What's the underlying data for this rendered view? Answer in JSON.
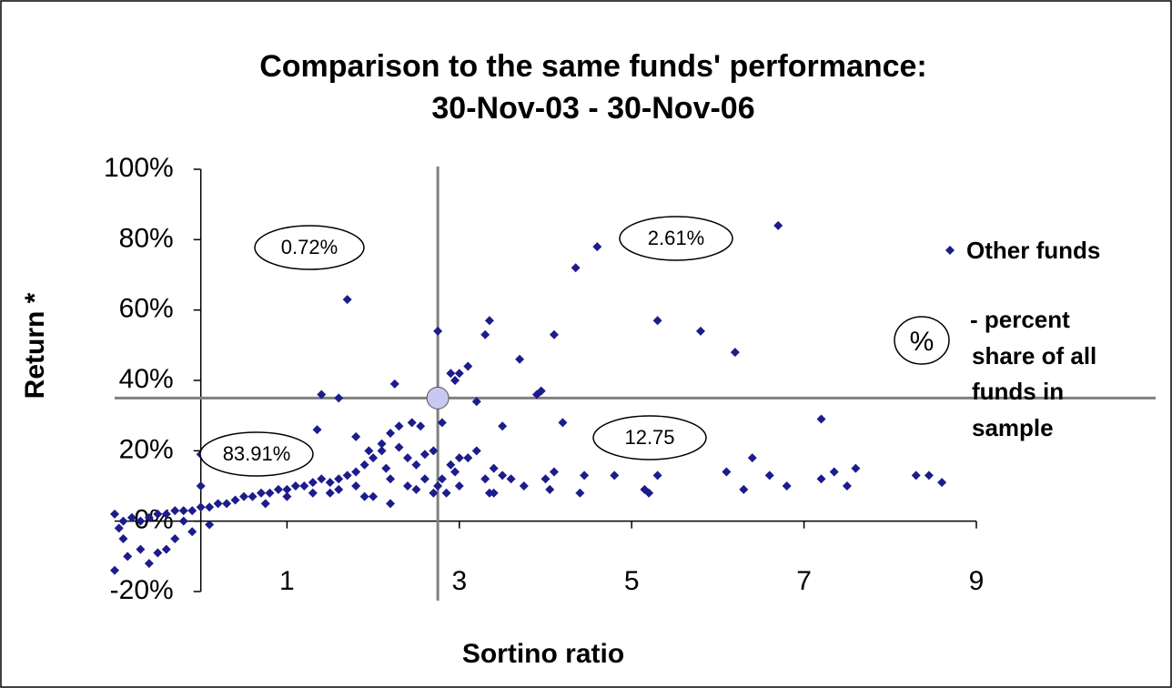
{
  "chart_data": {
    "type": "scatter",
    "title": [
      "Comparison to the same funds' performance:",
      "30-Nov-03 - 30-Nov-06"
    ],
    "xlabel": "Sortino ratio",
    "ylabel": "Return *",
    "xlim": [
      -1,
      9
    ],
    "ylim": [
      -20,
      100
    ],
    "xticks": [
      1,
      3,
      5,
      7,
      9
    ],
    "yticks": [
      {
        "value": -20,
        "label": "-20%"
      },
      {
        "value": 0,
        "label": "0%"
      },
      {
        "value": 20,
        "label": "20%"
      },
      {
        "value": 40,
        "label": "40%"
      },
      {
        "value": 60,
        "label": "60%"
      },
      {
        "value": 80,
        "label": "80%"
      },
      {
        "value": 100,
        "label": "100%"
      }
    ],
    "series": [
      {
        "name": "Other funds",
        "color": "#1c1c8c",
        "x": [
          1.7,
          2.75,
          3.35,
          3.3,
          3.7,
          4.1,
          4.35,
          4.6,
          6.7,
          5.3,
          5.8,
          6.2,
          3.95,
          3.9,
          3.1,
          3.0,
          2.9,
          2.95,
          2.25,
          1.4,
          1.6,
          3.2,
          2.8,
          3.5,
          4.2,
          7.2,
          6.4,
          6.3,
          6.6,
          6.1,
          6.8,
          7.2,
          7.35,
          7.5,
          7.6,
          8.3,
          8.45,
          8.6,
          5.3,
          5.2,
          5.15,
          4.8,
          4.45,
          4.1,
          4.0,
          4.05,
          4.4,
          3.75,
          3.6,
          3.5,
          3.4,
          3.3,
          3.35,
          3.4,
          3.2,
          3.1,
          3.0,
          2.9,
          2.8,
          3.0,
          2.75,
          2.85,
          2.95,
          2.6,
          2.5,
          2.4,
          2.3,
          2.2,
          2.1,
          2.0,
          1.9,
          1.8,
          1.7,
          1.6,
          1.5,
          1.4,
          1.3,
          1.2,
          1.1,
          1.0,
          0.9,
          0.8,
          0.7,
          0.6,
          0.5,
          0.4,
          0.3,
          0.2,
          0.1,
          0.0,
          -0.1,
          -0.2,
          -0.3,
          -0.4,
          -0.5,
          -0.6,
          -0.7,
          -0.8,
          -0.9,
          -1.0,
          -0.95,
          -0.9,
          -0.85,
          -1.0,
          -0.7,
          -0.6,
          -0.5,
          -0.4,
          -0.3,
          0.0,
          0.0,
          1.5,
          1.8,
          2.0,
          2.2,
          2.4,
          2.6,
          2.7,
          1.9,
          1.6,
          1.3,
          1.0,
          2.3,
          2.45,
          2.55,
          2.1,
          1.8,
          1.35,
          2.5,
          2.15,
          1.95,
          2.7,
          2.2,
          0.75,
          -0.2,
          -0.1,
          0.1
        ],
        "values": [
          63,
          54,
          57,
          53,
          46,
          53,
          72,
          78,
          84,
          57,
          54,
          48,
          37,
          36,
          44,
          42,
          42,
          40,
          39,
          36,
          35,
          34,
          28,
          27,
          28,
          29,
          18,
          9,
          13,
          14,
          10,
          12,
          14,
          10,
          15,
          13,
          13,
          11,
          13,
          8,
          9,
          13,
          13,
          14,
          12,
          9,
          8,
          10,
          12,
          13,
          15,
          12,
          8,
          8,
          20,
          18,
          18,
          16,
          12,
          10,
          10,
          8,
          14,
          19,
          16,
          18,
          21,
          25,
          22,
          18,
          16,
          14,
          13,
          12,
          11,
          12,
          11,
          10,
          10,
          9,
          9,
          8,
          8,
          7,
          7,
          6,
          5,
          5,
          4,
          4,
          3,
          3,
          3,
          2,
          2,
          1,
          0,
          1,
          0,
          2,
          -2,
          -5,
          -10,
          -14,
          -8,
          -12,
          -9,
          -8,
          -5,
          10,
          19,
          8,
          10,
          7,
          12,
          10,
          12,
          8,
          7,
          9,
          8,
          7,
          27,
          28,
          27,
          20,
          24,
          26,
          9,
          15,
          20,
          20,
          5,
          5,
          0,
          -3,
          -1
        ]
      }
    ],
    "highlight": {
      "x": 2.75,
      "y": 35,
      "color": "#c8c8f0"
    },
    "annotations": [
      "0.72%",
      "2.61%",
      "83.91%",
      "12.75"
    ],
    "legend_symbol": "%",
    "legend_note": [
      "- percent",
      "share of all",
      "funds in",
      "sample"
    ]
  }
}
